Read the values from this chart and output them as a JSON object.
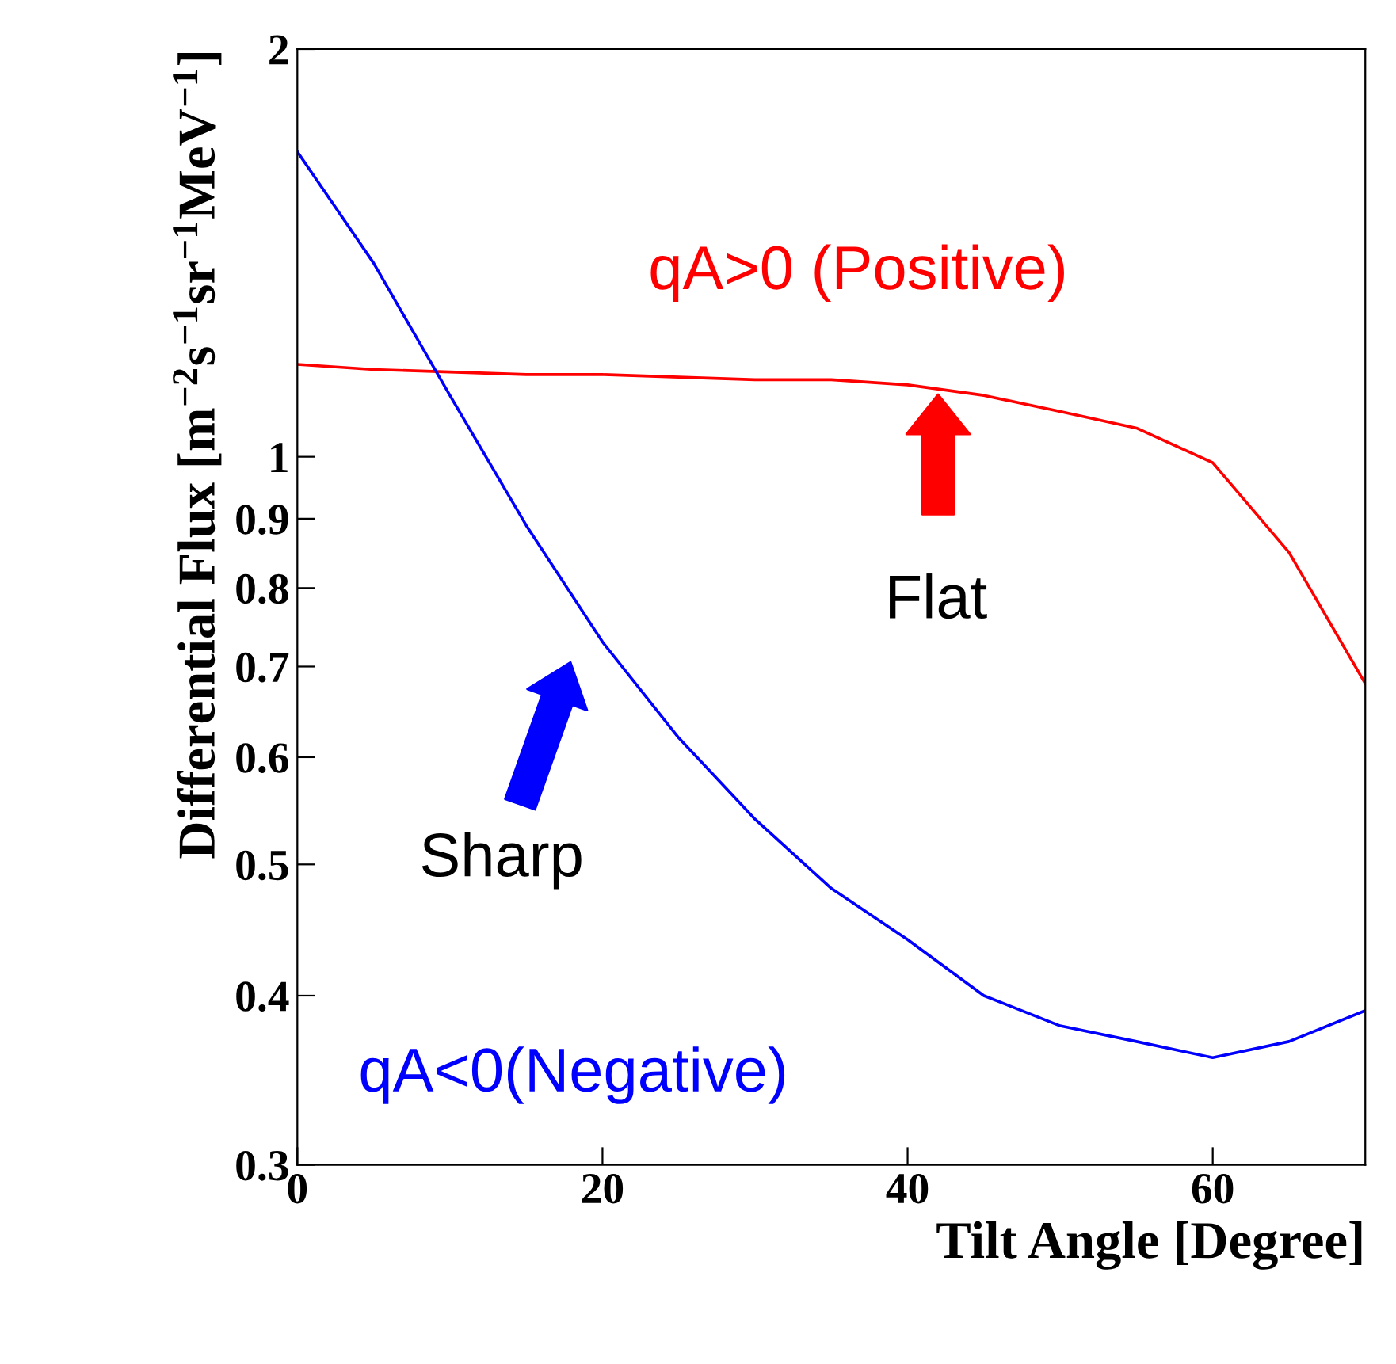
{
  "chart_data": {
    "type": "line",
    "xlabel": "Tilt Angle [Degree]",
    "ylabel": "Differential Flux [m$^{−2}$s$^{−1}$sr$^{−1}$MeV$^{−1}$]",
    "x": [
      0,
      5,
      10,
      15,
      20,
      25,
      30,
      35,
      40,
      45,
      50,
      55,
      60,
      65,
      70
    ],
    "series": [
      {
        "name": "qA>0 (Positive)",
        "color": "#ff0000",
        "values": [
          1.17,
          1.16,
          1.155,
          1.15,
          1.15,
          1.145,
          1.14,
          1.14,
          1.13,
          1.11,
          1.08,
          1.05,
          0.99,
          0.85,
          0.68
        ]
      },
      {
        "name": "qA<0(Negative)",
        "color": "#0000ff",
        "values": [
          1.68,
          1.39,
          1.11,
          0.89,
          0.73,
          0.62,
          0.54,
          0.48,
          0.44,
          0.4,
          0.38,
          0.37,
          0.36,
          0.37,
          0.39
        ]
      }
    ],
    "log": "y",
    "xlim": [
      0,
      70
    ],
    "ylim": [
      0.3,
      2
    ],
    "xticks": [
      0,
      20,
      40,
      60
    ],
    "yticks": [
      0.3,
      0.4,
      0.5,
      0.6,
      0.7,
      0.8,
      0.9,
      1,
      2
    ],
    "annotations": [
      "Flat",
      "Sharp"
    ],
    "grid": false,
    "legend": false,
    "marker": "none",
    "line_style": "solid"
  }
}
